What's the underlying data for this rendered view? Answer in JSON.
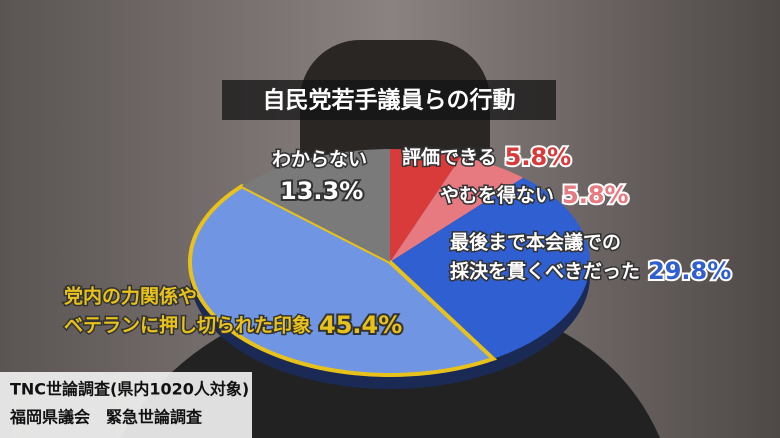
{
  "chart_data": {
    "type": "pie",
    "title": "自民党若手議員らの行動",
    "categories": [
      [
        "評価できる"
      ],
      [
        "やむを得ない"
      ],
      [
        "最後まで本会議での",
        "採決を貫くべきだった"
      ],
      [
        "党内の力関係や",
        "ベテランに押し切られた印象"
      ],
      [
        "わからない"
      ]
    ],
    "values": [
      5.8,
      5.8,
      29.8,
      45.4,
      13.3
    ],
    "value_labels": [
      "5.8%",
      "5.8%",
      "29.8%",
      "45.4%",
      "13.3%"
    ],
    "colors": [
      "#d93a3a",
      "#e77a80",
      "#2f5fd0",
      "#6f95e3",
      "#7a7a7a"
    ],
    "highlight_color": "#e8c21a",
    "source": [
      "TNC世論調査(県内1020人対象)",
      "福岡県議会　緊急世論調査"
    ]
  }
}
